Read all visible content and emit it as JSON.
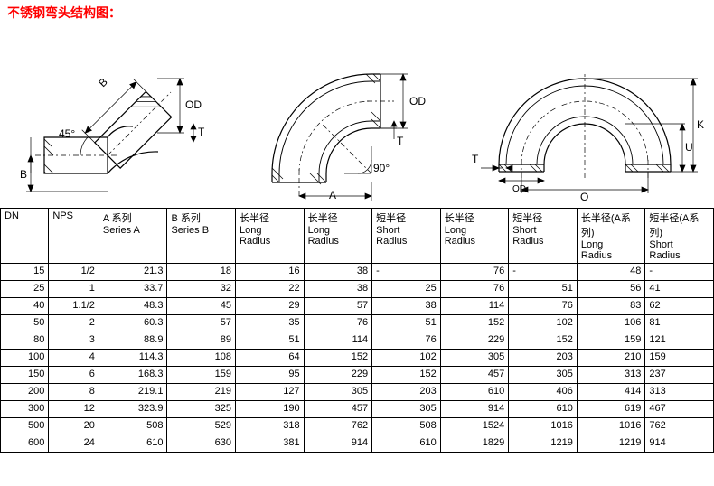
{
  "title_text": "不锈钢弯头结构图：",
  "title_color": "#ff0000",
  "diagrams": {
    "stroke": "#000000",
    "hatch": "#000000",
    "label_font": 12,
    "d1": {
      "labels": [
        "B",
        "B",
        "OD",
        "T",
        "45°"
      ]
    },
    "d2": {
      "labels": [
        "OD",
        "T",
        "A",
        "90°"
      ]
    },
    "d3": {
      "labels": [
        "T",
        "OD",
        "O",
        "U",
        "K"
      ]
    }
  },
  "table": {
    "header": [
      {
        "l1": "DN",
        "l2": ""
      },
      {
        "l1": "NPS",
        "l2": ""
      },
      {
        "l1": "A 系列",
        "l2": "Series A"
      },
      {
        "l1": "B 系列",
        "l2": "Series B"
      },
      {
        "l1": "长半径",
        "l2": "Long",
        "l3": "Radius"
      },
      {
        "l1": "长半径",
        "l2": "Long",
        "l3": "Radius"
      },
      {
        "l1": "短半径",
        "l2": "Short",
        "l3": " Radius"
      },
      {
        "l1": "长半径",
        "l2": "Long",
        "l3": "Radius"
      },
      {
        "l1": "短半径",
        "l2": "Short",
        "l3": " Radius"
      },
      {
        "l1": "长半径(A系列)",
        "l2": "Long",
        "l3": "Radius"
      },
      {
        "l1": "短半径(A系列)",
        "l2": "Short",
        "l3": " Radius"
      }
    ],
    "rows": [
      [
        "15",
        "1/2",
        "21.3",
        "18",
        "16",
        "38",
        "-",
        "76",
        "-",
        "48",
        "-"
      ],
      [
        "25",
        "1",
        "33.7",
        "32",
        "22",
        "38",
        "25",
        "76",
        "51",
        "56",
        "41"
      ],
      [
        "40",
        "1.1/2",
        "48.3",
        "45",
        "29",
        "57",
        "38",
        "114",
        "76",
        "83",
        "62"
      ],
      [
        "50",
        "2",
        "60.3",
        "57",
        "35",
        "76",
        "51",
        "152",
        "102",
        "106",
        "81"
      ],
      [
        "80",
        "3",
        "88.9",
        "89",
        "51",
        "114",
        "76",
        "229",
        "152",
        "159",
        "121"
      ],
      [
        "100",
        "4",
        "114.3",
        "108",
        "64",
        "152",
        "102",
        "305",
        "203",
        "210",
        "159"
      ],
      [
        "150",
        "6",
        "168.3",
        "159",
        "95",
        "229",
        "152",
        "457",
        "305",
        "313",
        "237"
      ],
      [
        "200",
        "8",
        "219.1",
        "219",
        "127",
        "305",
        "203",
        "610",
        "406",
        "414",
        "313"
      ],
      [
        "300",
        "12",
        "323.9",
        "325",
        "190",
        "457",
        "305",
        "914",
        "610",
        "619",
        "467"
      ],
      [
        "500",
        "20",
        "508",
        "529",
        "318",
        "762",
        "508",
        "1524",
        "1016",
        "1016",
        "762"
      ],
      [
        "600",
        "24",
        "610",
        "630",
        "381",
        "914",
        "610",
        "1829",
        "1219",
        "1219",
        "914"
      ]
    ],
    "text_align_left_cols": [
      10
    ],
    "border_color": "#000000"
  }
}
